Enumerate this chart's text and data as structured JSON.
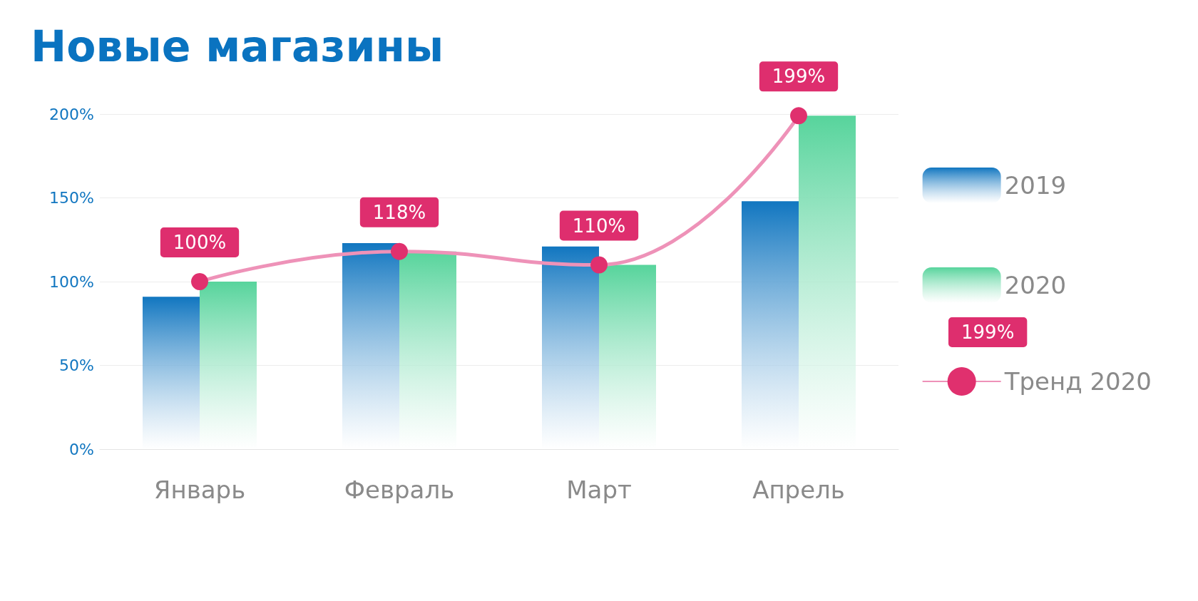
{
  "chart_data": {
    "type": "bar",
    "title": "Новые магазины",
    "categories": [
      "Январь",
      "Февраль",
      "Март",
      "Апрель"
    ],
    "series": [
      {
        "name": "2019",
        "color": "#1176c0",
        "values": [
          91,
          123,
          121,
          148
        ]
      },
      {
        "name": "2020",
        "color": "#57d49c",
        "values": [
          100,
          118,
          110,
          199
        ]
      },
      {
        "name": "Тренд 2020",
        "type": "line",
        "color": "#ee92b8",
        "values": [
          100,
          118,
          110,
          199
        ],
        "value_labels": [
          "100%",
          "118%",
          "110%",
          "199%"
        ]
      }
    ],
    "ylim": [
      0,
      200
    ],
    "yticks": [
      {
        "value": 0,
        "label": "0%"
      },
      {
        "value": 50,
        "label": "50%"
      },
      {
        "value": 100,
        "label": "100%"
      },
      {
        "value": 150,
        "label": "150%"
      },
      {
        "value": 200,
        "label": "200%"
      }
    ],
    "grid": "y",
    "legend": "right",
    "marker": "circle",
    "annotations": [
      "199%"
    ]
  }
}
